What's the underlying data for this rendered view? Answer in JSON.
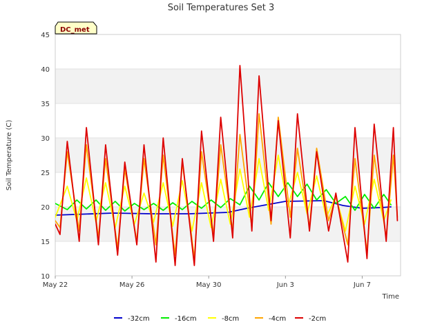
{
  "chart_data": {
    "type": "line",
    "title": "Soil Temperatures Set 3",
    "xlabel": "Time",
    "ylabel": "Soil Temperature (C)",
    "badge": "DC_met",
    "ylim": [
      10,
      45
    ],
    "yticks": [
      10,
      15,
      20,
      25,
      30,
      35,
      40,
      45
    ],
    "xlim": [
      "2023-05-22",
      "2023-06-09"
    ],
    "xticks": [
      {
        "date": "2023-05-22",
        "label": "May 22"
      },
      {
        "date": "2023-05-26",
        "label": "May 26"
      },
      {
        "date": "2023-05-30",
        "label": "May 30"
      },
      {
        "date": "2023-06-03",
        "label": "Jun 3"
      },
      {
        "date": "2023-06-07",
        "label": "Jun 7"
      }
    ],
    "grid": true,
    "banded_background": true,
    "legend": "bottom",
    "series": [
      {
        "name": "-32cm",
        "color": "#0000cc",
        "x": [
          "2023-05-22",
          "2023-05-25",
          "2023-05-27",
          "2023-05-29",
          "2023-05-31",
          "2023-06-01",
          "2023-06-02",
          "2023-06-03",
          "2023-06-05",
          "2023-06-06",
          "2023-06-07",
          "2023-06-08",
          "2023-06-08T12:00"
        ],
        "y": [
          18.8,
          19.1,
          19.0,
          19.0,
          19.2,
          19.8,
          20.3,
          20.8,
          20.9,
          20.2,
          19.8,
          19.9,
          20.0
        ]
      },
      {
        "name": "-16cm",
        "color": "#00ee00",
        "x": [
          "2023-05-22",
          "2023-05-22T15:00",
          "2023-05-23T03:00",
          "2023-05-23T15:00",
          "2023-05-24T03:00",
          "2023-05-24T15:00",
          "2023-05-25T03:00",
          "2023-05-25T15:00",
          "2023-05-26T03:00",
          "2023-05-26T15:00",
          "2023-05-27T03:00",
          "2023-05-27T15:00",
          "2023-05-28T03:00",
          "2023-05-28T15:00",
          "2023-05-29T03:00",
          "2023-05-29T15:00",
          "2023-05-30T03:00",
          "2023-05-30T15:00",
          "2023-05-31T03:00",
          "2023-05-31T15:00",
          "2023-06-01T03:00",
          "2023-06-01T15:00",
          "2023-06-02T03:00",
          "2023-06-02T15:00",
          "2023-06-03T03:00",
          "2023-06-03T15:00",
          "2023-06-04T03:00",
          "2023-06-04T15:00",
          "2023-06-05T03:00",
          "2023-06-05T15:00",
          "2023-06-06T03:00",
          "2023-06-06T15:00",
          "2023-06-07T03:00",
          "2023-06-07T15:00",
          "2023-06-08T03:00",
          "2023-06-08T12:00"
        ],
        "y": [
          20.5,
          19.6,
          21.0,
          19.7,
          21.0,
          19.5,
          20.8,
          19.4,
          20.5,
          19.6,
          20.5,
          19.5,
          20.6,
          19.6,
          20.8,
          19.8,
          21.0,
          19.9,
          21.2,
          20.3,
          23.0,
          21.0,
          23.5,
          21.5,
          23.5,
          21.5,
          23.3,
          21.0,
          22.5,
          20.5,
          21.5,
          19.5,
          21.8,
          19.8,
          21.8,
          20.3
        ]
      },
      {
        "name": "-8cm",
        "color": "#ffff00",
        "x": [
          "2023-05-22",
          "2023-05-22T15:00",
          "2023-05-23T03:00",
          "2023-05-23T15:00",
          "2023-05-24T03:00",
          "2023-05-24T15:00",
          "2023-05-25T03:00",
          "2023-05-25T15:00",
          "2023-05-26T03:00",
          "2023-05-26T15:00",
          "2023-05-27T03:00",
          "2023-05-27T15:00",
          "2023-05-28T03:00",
          "2023-05-28T15:00",
          "2023-05-29T03:00",
          "2023-05-29T15:00",
          "2023-05-30T03:00",
          "2023-05-30T15:00",
          "2023-05-31T03:00",
          "2023-05-31T15:00",
          "2023-06-01T03:00",
          "2023-06-01T15:00",
          "2023-06-02T03:00",
          "2023-06-02T15:00",
          "2023-06-03T03:00",
          "2023-06-03T15:00",
          "2023-06-04T03:00",
          "2023-06-04T15:00",
          "2023-06-05T03:00",
          "2023-06-05T15:00",
          "2023-06-06T03:00",
          "2023-06-06T15:00",
          "2023-06-07T03:00",
          "2023-06-07T15:00",
          "2023-06-08T03:00",
          "2023-06-08T12:00"
        ],
        "y": [
          18.5,
          23.0,
          18.0,
          24.2,
          17.8,
          23.5,
          17.0,
          23.0,
          17.5,
          22.0,
          17.8,
          23.5,
          17.2,
          23.8,
          16.5,
          23.5,
          17.0,
          24.0,
          17.5,
          25.5,
          18.5,
          27.0,
          19.5,
          27.5,
          20.0,
          25.0,
          19.0,
          24.5,
          18.5,
          21.5,
          16.5,
          23.0,
          17.5,
          24.0,
          18.0,
          21.0
        ]
      },
      {
        "name": "-4cm",
        "color": "#ffa500",
        "x": [
          "2023-05-22",
          "2023-05-22T06:00",
          "2023-05-22T15:00",
          "2023-05-23T06:00",
          "2023-05-23T15:00",
          "2023-05-24T06:00",
          "2023-05-24T15:00",
          "2023-05-25T06:00",
          "2023-05-25T15:00",
          "2023-05-26T06:00",
          "2023-05-26T15:00",
          "2023-05-27T06:00",
          "2023-05-27T15:00",
          "2023-05-28T06:00",
          "2023-05-28T15:00",
          "2023-05-29T06:00",
          "2023-05-29T15:00",
          "2023-05-30T06:00",
          "2023-05-30T15:00",
          "2023-05-31T06:00",
          "2023-05-31T15:00",
          "2023-06-01T06:00",
          "2023-06-01T15:00",
          "2023-06-02T06:00",
          "2023-06-02T15:00",
          "2023-06-03T06:00",
          "2023-06-03T15:00",
          "2023-06-04T06:00",
          "2023-06-04T15:00",
          "2023-06-05T06:00",
          "2023-06-05T15:00",
          "2023-06-06T06:00",
          "2023-06-06T15:00",
          "2023-06-07T06:00",
          "2023-06-07T15:00",
          "2023-06-08T06:00",
          "2023-06-08T15:00",
          "2023-06-08T20:00"
        ],
        "y": [
          18.0,
          17.0,
          28.0,
          16.5,
          29.0,
          15.5,
          27.0,
          14.0,
          25.5,
          15.0,
          27.0,
          14.5,
          27.5,
          13.0,
          26.5,
          12.5,
          28.0,
          16.0,
          29.0,
          16.5,
          30.5,
          17.0,
          33.5,
          17.5,
          33.0,
          18.5,
          28.5,
          17.0,
          28.5,
          18.0,
          21.5,
          14.5,
          27.0,
          13.5,
          27.5,
          15.5,
          27.5,
          18.5
        ]
      },
      {
        "name": "-2cm",
        "color": "#dd0000",
        "x": [
          "2023-05-22",
          "2023-05-22T06:00",
          "2023-05-22T15:00",
          "2023-05-23T06:00",
          "2023-05-23T15:00",
          "2023-05-24T06:00",
          "2023-05-24T15:00",
          "2023-05-25T06:00",
          "2023-05-25T15:00",
          "2023-05-26T06:00",
          "2023-05-26T15:00",
          "2023-05-27T06:00",
          "2023-05-27T15:00",
          "2023-05-28T06:00",
          "2023-05-28T15:00",
          "2023-05-29T06:00",
          "2023-05-29T15:00",
          "2023-05-30T06:00",
          "2023-05-30T15:00",
          "2023-05-31T06:00",
          "2023-05-31T15:00",
          "2023-06-01T06:00",
          "2023-06-01T15:00",
          "2023-06-02T06:00",
          "2023-06-02T15:00",
          "2023-06-03T06:00",
          "2023-06-03T15:00",
          "2023-06-04T06:00",
          "2023-06-04T15:00",
          "2023-06-05T06:00",
          "2023-06-05T15:00",
          "2023-06-06T06:00",
          "2023-06-06T15:00",
          "2023-06-07T06:00",
          "2023-06-07T15:00",
          "2023-06-08T06:00",
          "2023-06-08T15:00",
          "2023-06-08T20:00"
        ],
        "y": [
          17.5,
          16.0,
          29.5,
          15.0,
          31.5,
          14.5,
          29.0,
          13.0,
          26.5,
          14.5,
          29.0,
          12.0,
          30.0,
          11.5,
          27.0,
          11.5,
          31.0,
          15.0,
          33.0,
          15.5,
          40.5,
          16.5,
          39.0,
          18.0,
          32.5,
          15.5,
          33.5,
          16.5,
          28.0,
          16.5,
          22.0,
          12.0,
          31.5,
          12.5,
          32.0,
          15.0,
          31.5,
          18.0
        ]
      }
    ]
  }
}
